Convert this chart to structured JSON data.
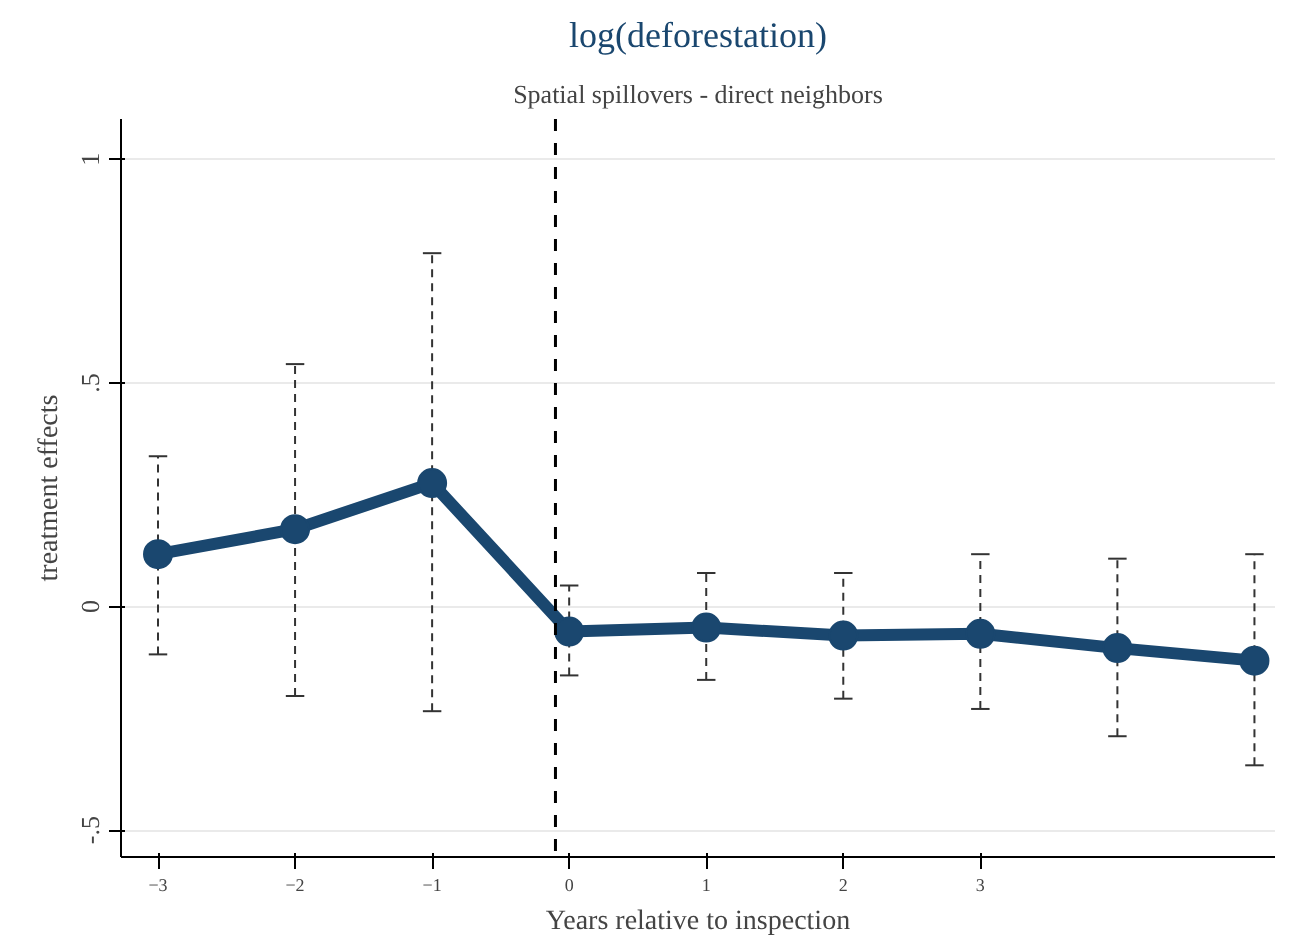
{
  "chart_data": {
    "type": "line",
    "title": "log(deforestation)",
    "subtitle": "Spatial spillovers - direct neighbors",
    "xlabel": "Years relative to inspection",
    "ylabel": "treatment effects",
    "x": [
      -3,
      -2,
      -1,
      0,
      1,
      2,
      3,
      4,
      5
    ],
    "series": [
      {
        "color": "#1a476f",
        "values": [
          0.117,
          0.173,
          0.276,
          -0.056,
          -0.047,
          -0.065,
          -0.061,
          -0.093,
          -0.121
        ],
        "errors": [
          [
            -0.107,
            0.336
          ],
          [
            -0.2,
            0.542
          ],
          [
            -0.234,
            0.79
          ],
          [
            -0.154,
            0.047
          ],
          [
            -0.164,
            0.075
          ],
          [
            -0.206,
            0.075
          ],
          [
            -0.229,
            0.117
          ],
          [
            -0.29,
            0.107
          ],
          [
            -0.355,
            0.117
          ]
        ]
      }
    ],
    "marker": "circle",
    "xlim": [
      -3.27,
      5.15
    ],
    "ylim": [
      -0.56,
      1.09
    ],
    "xticks": [
      -3,
      -2,
      -1,
      0,
      1,
      2,
      3
    ],
    "yticks": [
      {
        "value": -0.5,
        "label": "-.5"
      },
      0,
      {
        "value": 0.5,
        "label": ".5"
      },
      1
    ],
    "grid": "y",
    "ref_lines": [
      {
        "axis": "x",
        "value": -0.1,
        "color": "#000000",
        "line_style": "dashed"
      }
    ]
  }
}
